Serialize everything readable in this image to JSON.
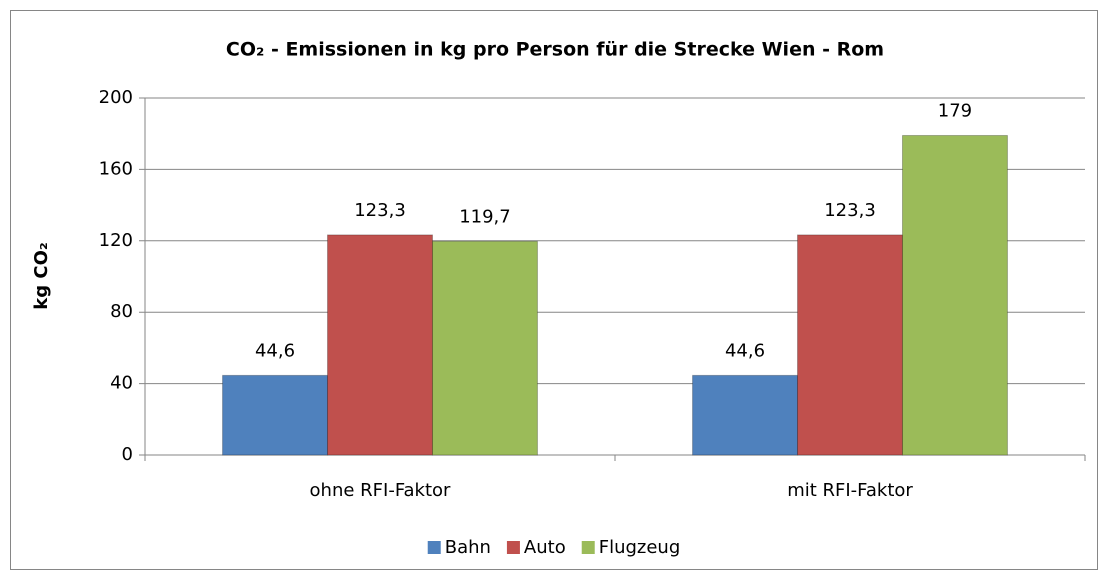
{
  "chart_data": {
    "type": "bar",
    "title": "CO₂ - Emissionen in kg pro Person für die Strecke Wien - Rom",
    "y_label": "kg CO₂",
    "categories": [
      "ohne RFI-Faktor",
      "mit RFI-Faktor"
    ],
    "series": [
      {
        "name": "Bahn",
        "color": "#4f81bd",
        "values": [
          44.6,
          44.6
        ],
        "value_labels": [
          "44,6",
          "44,6"
        ]
      },
      {
        "name": "Auto",
        "color": "#c0504d",
        "values": [
          123.3,
          123.3
        ],
        "value_labels": [
          "123,3",
          "123,3"
        ]
      },
      {
        "name": "Flugzeug",
        "color": "#9bbb59",
        "values": [
          119.7,
          179
        ],
        "value_labels": [
          "119,7",
          "179"
        ]
      }
    ],
    "ylim": [
      0,
      200
    ],
    "yticks": [
      0,
      40,
      80,
      120,
      160,
      200
    ],
    "grid": true,
    "legend": "bottom"
  }
}
